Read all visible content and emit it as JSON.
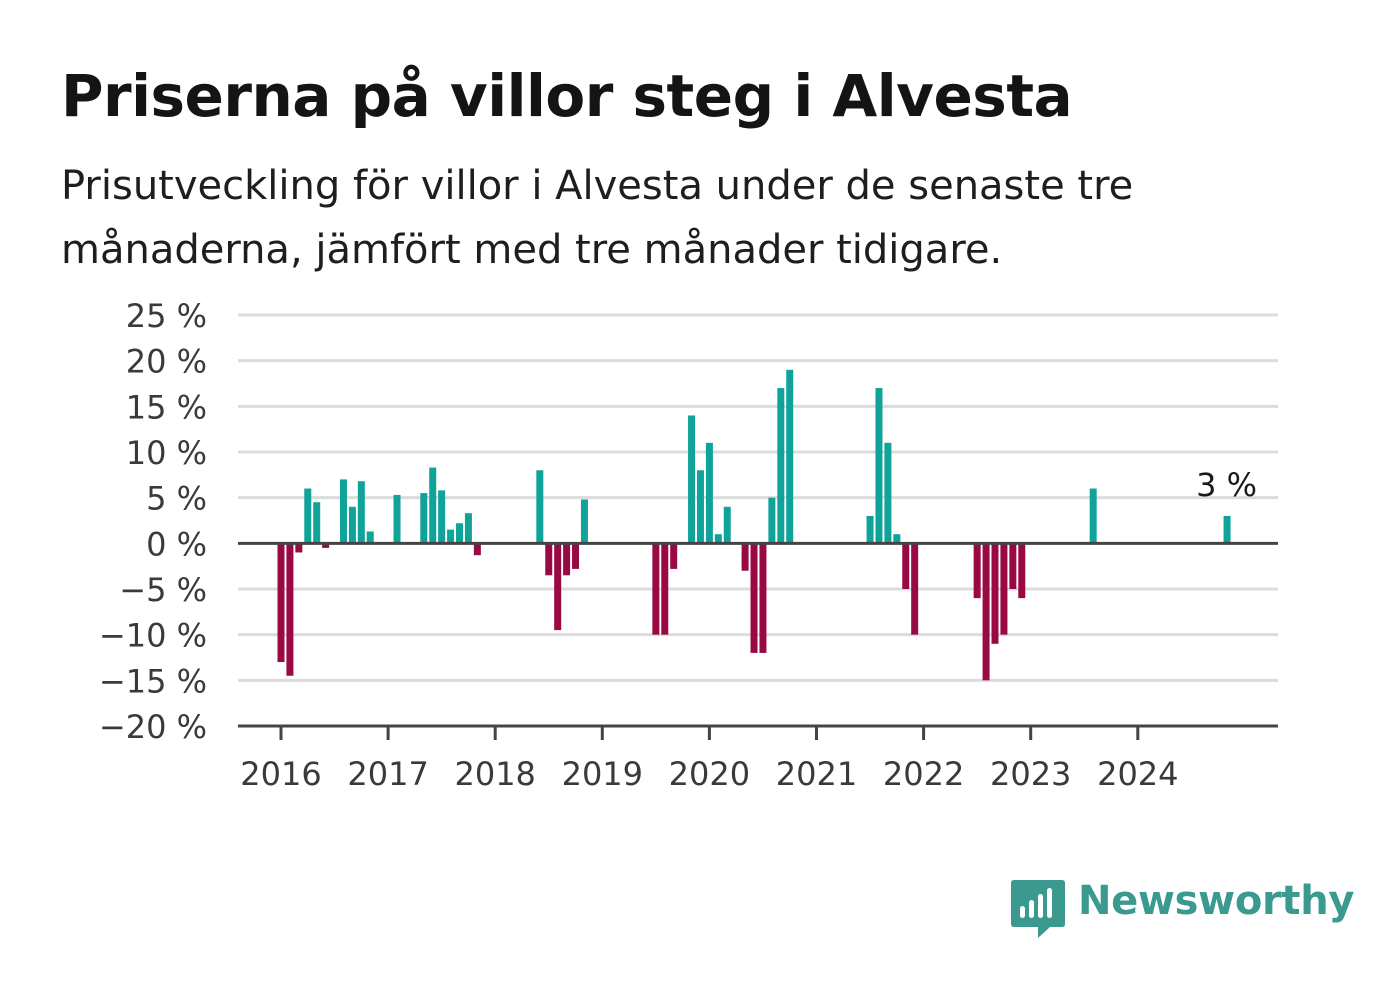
{
  "title": "Priserna på villor steg i Alvesta",
  "subtitle": "Prisutveckling för villor i Alvesta under de senaste tre månaderna, jämfört med tre månader tidigare.",
  "brand": {
    "name": "Newsworthy",
    "icon": "newsworthy-logo-icon",
    "color": "#3a9a90"
  },
  "colors": {
    "positive": "#0fa399",
    "negative": "#990a45",
    "grid": "#dcdcdc",
    "axis": "#444444"
  },
  "chart_data": {
    "type": "bar",
    "title": "Priserna på villor steg i Alvesta",
    "xlabel": "",
    "ylabel": "",
    "ylim": [
      -20,
      25
    ],
    "yticks": [
      25,
      20,
      15,
      10,
      5,
      0,
      -5,
      -10,
      -15,
      -20
    ],
    "ytick_labels": [
      "25 %",
      "20 %",
      "15 %",
      "10 %",
      "5 %",
      "0 %",
      "−5 %",
      "−10 %",
      "−15 %",
      "−20 %"
    ],
    "xticks": [
      "2016",
      "2017",
      "2018",
      "2019",
      "2020",
      "2021",
      "2022",
      "2023",
      "2024"
    ],
    "grid": true,
    "annotation": {
      "label": "3 %",
      "month": "2024-11"
    },
    "series": [
      {
        "values": [
          {
            "month": "2016-01",
            "value": -13
          },
          {
            "month": "2016-02",
            "value": -14.5
          },
          {
            "month": "2016-03",
            "value": -1
          },
          {
            "month": "2016-04",
            "value": 6
          },
          {
            "month": "2016-05",
            "value": 4.5
          },
          {
            "month": "2016-06",
            "value": -0.5
          },
          {
            "month": "2016-08",
            "value": 7
          },
          {
            "month": "2016-09",
            "value": 4
          },
          {
            "month": "2016-10",
            "value": 6.8
          },
          {
            "month": "2016-11",
            "value": 1.3
          },
          {
            "month": "2017-02",
            "value": 5.3
          },
          {
            "month": "2017-05",
            "value": 5.5
          },
          {
            "month": "2017-06",
            "value": 8.3
          },
          {
            "month": "2017-07",
            "value": 5.8
          },
          {
            "month": "2017-08",
            "value": 1.5
          },
          {
            "month": "2017-09",
            "value": 2.2
          },
          {
            "month": "2017-10",
            "value": 3.3
          },
          {
            "month": "2017-11",
            "value": -1.3
          },
          {
            "month": "2018-06",
            "value": 8
          },
          {
            "month": "2018-07",
            "value": -3.5
          },
          {
            "month": "2018-08",
            "value": -9.5
          },
          {
            "month": "2018-09",
            "value": -3.5
          },
          {
            "month": "2018-10",
            "value": -2.8
          },
          {
            "month": "2018-11",
            "value": 4.8
          },
          {
            "month": "2019-07",
            "value": -10
          },
          {
            "month": "2019-08",
            "value": -10
          },
          {
            "month": "2019-09",
            "value": -2.8
          },
          {
            "month": "2019-11",
            "value": 14
          },
          {
            "month": "2019-12",
            "value": 8
          },
          {
            "month": "2020-01",
            "value": 11
          },
          {
            "month": "2020-02",
            "value": 1
          },
          {
            "month": "2020-03",
            "value": 4
          },
          {
            "month": "2020-05",
            "value": -3
          },
          {
            "month": "2020-06",
            "value": -12
          },
          {
            "month": "2020-07",
            "value": -12
          },
          {
            "month": "2020-08",
            "value": 5
          },
          {
            "month": "2020-09",
            "value": 17
          },
          {
            "month": "2020-10",
            "value": 19
          },
          {
            "month": "2021-07",
            "value": 3
          },
          {
            "month": "2021-08",
            "value": 17
          },
          {
            "month": "2021-09",
            "value": 11
          },
          {
            "month": "2021-10",
            "value": 1
          },
          {
            "month": "2021-11",
            "value": -5
          },
          {
            "month": "2021-12",
            "value": -10
          },
          {
            "month": "2022-07",
            "value": -6
          },
          {
            "month": "2022-08",
            "value": -15
          },
          {
            "month": "2022-09",
            "value": -11
          },
          {
            "month": "2022-10",
            "value": -10
          },
          {
            "month": "2022-11",
            "value": -5
          },
          {
            "month": "2022-12",
            "value": -6
          },
          {
            "month": "2023-08",
            "value": 6
          },
          {
            "month": "2024-11",
            "value": 3
          }
        ]
      }
    ]
  }
}
